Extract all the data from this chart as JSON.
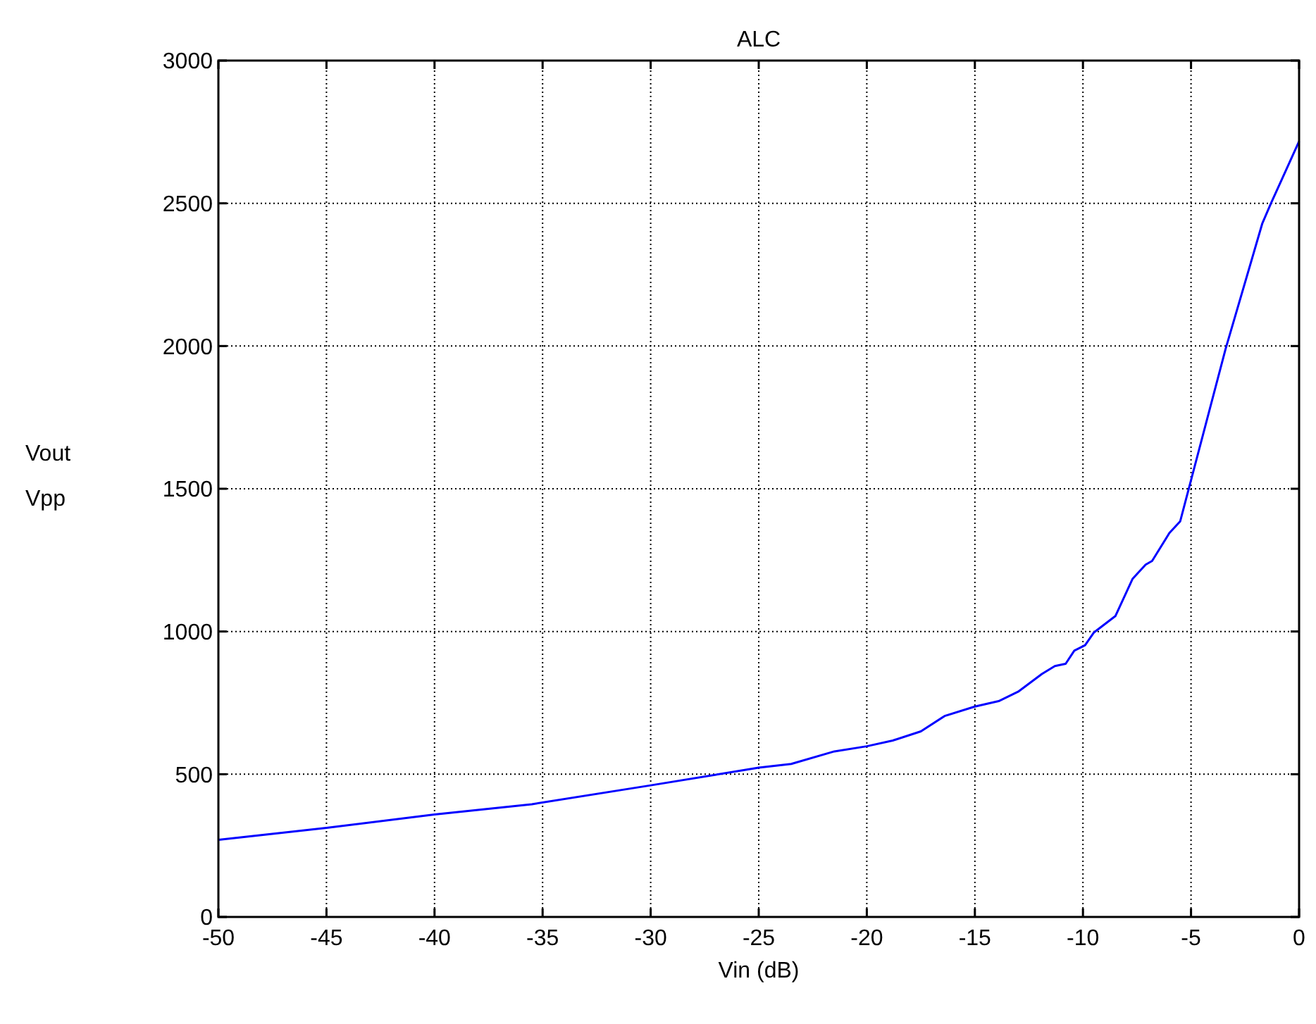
{
  "chart_data": {
    "type": "line",
    "title": "ALC",
    "xlabel": "Vin  (dB)",
    "ylabel": "Vout\nVpp",
    "x": [
      -50,
      -45,
      -40,
      -35.5,
      -30,
      -25,
      -23.5,
      -21.5,
      -20,
      -18.8,
      -17.5,
      -16.4,
      -15,
      -13.9,
      -13,
      -11.9,
      -11.3,
      -10.8,
      -10.4,
      -9.9,
      -9.5,
      -8.5,
      -7.7,
      -7.1,
      -6.8,
      -6,
      -5.5,
      -3.4,
      -1.7,
      -1.3,
      0
    ],
    "series": [
      {
        "color": "#0000ff",
        "values": [
          270,
          312,
          359,
          395,
          461,
          523,
          536,
          580,
          598,
          618,
          650,
          704,
          737,
          756,
          789,
          851,
          879,
          887,
          933,
          952,
          996,
          1054,
          1185,
          1234,
          1247,
          1345,
          1386,
          1990,
          2430,
          2500,
          2717
        ]
      }
    ],
    "xlim": [
      -50,
      0
    ],
    "xticks": [
      -50,
      -45,
      -40,
      -35,
      -30,
      -25,
      -20,
      -15,
      -10,
      -5,
      0
    ],
    "ylim": [
      0,
      3000
    ],
    "yticks": [
      0,
      500,
      1000,
      1500,
      2000,
      2500,
      3000
    ],
    "grid": true,
    "line_style": "solid",
    "marker": "none"
  }
}
